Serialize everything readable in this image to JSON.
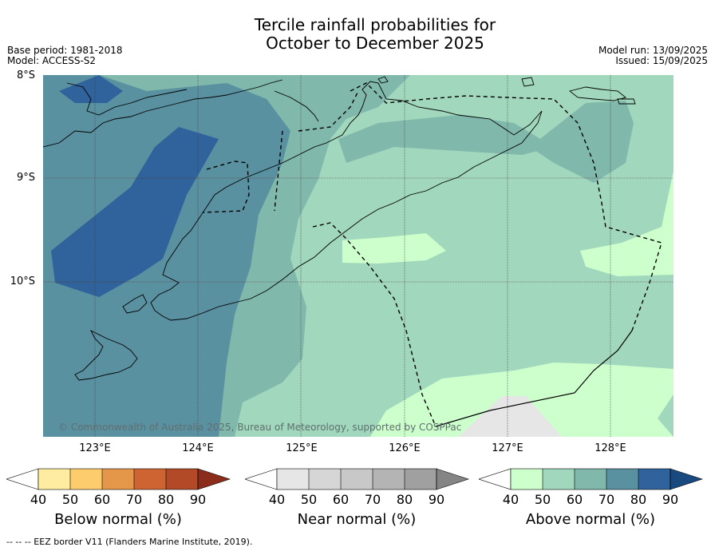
{
  "header": {
    "title_line1": "Tercile rainfall probabilities for",
    "title_line2": "October to December 2025",
    "base_period": "Base period: 1981-2018",
    "model": "Model: ACCESS-S2",
    "model_run": "Model run: 13/09/2025",
    "issued": "Issued: 15/09/2025"
  },
  "map": {
    "lat_labels": [
      "8°S",
      "9°S",
      "10°S"
    ],
    "lon_labels": [
      "123°E",
      "124°E",
      "125°E",
      "126°E",
      "127°E",
      "128°E"
    ],
    "credit": "© Commonwealth of Australia 2025, Bureau of Meteorology, supported by COSPPac"
  },
  "colorbars": [
    {
      "title": "Below normal (%)",
      "ticks": [
        "40",
        "50",
        "60",
        "70",
        "80",
        "90"
      ],
      "colors": [
        "#ffffff",
        "#feeda0",
        "#fdcc6c",
        "#e49748",
        "#cf6433",
        "#b24a27",
        "#8c2d1b"
      ]
    },
    {
      "title": "Near normal (%)",
      "ticks": [
        "40",
        "50",
        "60",
        "70",
        "80",
        "90"
      ],
      "colors": [
        "#ffffff",
        "#e6e6e6",
        "#d6d6d6",
        "#c8c8c8",
        "#b4b4b4",
        "#a0a0a0",
        "#858585"
      ]
    },
    {
      "title": "Above normal (%)",
      "ticks": [
        "40",
        "50",
        "60",
        "70",
        "80",
        "90"
      ],
      "colors": [
        "#ffffff",
        "#ccffcc",
        "#a1d7bc",
        "#80b8ab",
        "#5a91a1",
        "#30639b",
        "#184a80"
      ]
    }
  ],
  "footer": "--  --  -- EEZ border V11 (Flanders Marine Institute, 2019)."
}
